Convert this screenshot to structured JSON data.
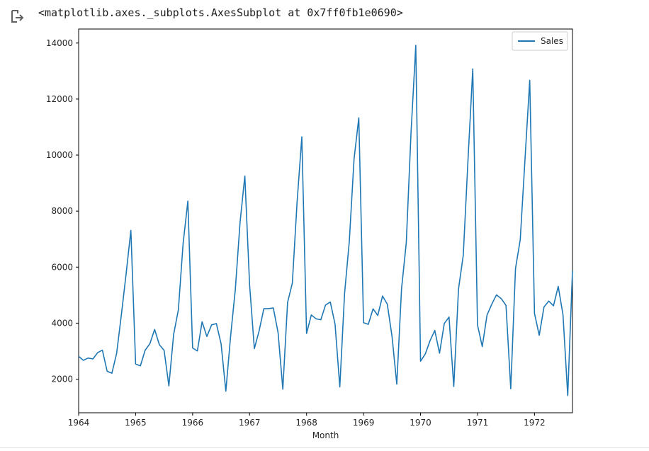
{
  "output": {
    "icon": "output-arrow-icon",
    "repr": "<matplotlib.axes._subplots.AxesSubplot at 0x7ff0fb1e0690>"
  },
  "chart_data": {
    "type": "line",
    "xlabel": "Month",
    "ylabel": "",
    "title": "",
    "x_ticks": [
      "1964",
      "1965",
      "1966",
      "1967",
      "1968",
      "1969",
      "1970",
      "1971",
      "1972"
    ],
    "y_ticks": [
      2000,
      4000,
      6000,
      8000,
      10000,
      12000,
      14000
    ],
    "x_range": [
      "1964-01",
      "1972-09"
    ],
    "ylim": [
      800,
      14500
    ],
    "grid": false,
    "legend_position": "top-right",
    "series_color": "#1f77b4",
    "series": [
      {
        "name": "Sales",
        "start": "1964-01",
        "frequency": "monthly",
        "values": [
          2815,
          2672,
          2755,
          2721,
          2946,
          3036,
          2282,
          2212,
          2922,
          4301,
          5764,
          7312,
          2541,
          2475,
          3031,
          3266,
          3776,
          3230,
          3028,
          1759,
          3595,
          4474,
          6838,
          8357,
          3113,
          3006,
          4047,
          3523,
          3937,
          3986,
          3260,
          1573,
          3528,
          5211,
          7614,
          9254,
          5375,
          3088,
          3718,
          4514,
          4520,
          4539,
          3663,
          1643,
          4739,
          5428,
          8314,
          10651,
          3633,
          4292,
          4154,
          4121,
          4647,
          4753,
          3965,
          1723,
          5048,
          6922,
          9858,
          11331,
          4016,
          3957,
          4510,
          4276,
          4968,
          4677,
          3523,
          1821,
          5222,
          6872,
          10803,
          13916,
          2639,
          2899,
          3370,
          3740,
          2927,
          3986,
          4217,
          1738,
          5221,
          6424,
          9842,
          13076,
          3934,
          3162,
          4286,
          4676,
          5010,
          4874,
          4633,
          1659,
          5951,
          6981,
          9851,
          12670,
          4348,
          3564,
          4577,
          4788,
          4618,
          5312,
          4298,
          1413,
          5877
        ]
      }
    ]
  }
}
